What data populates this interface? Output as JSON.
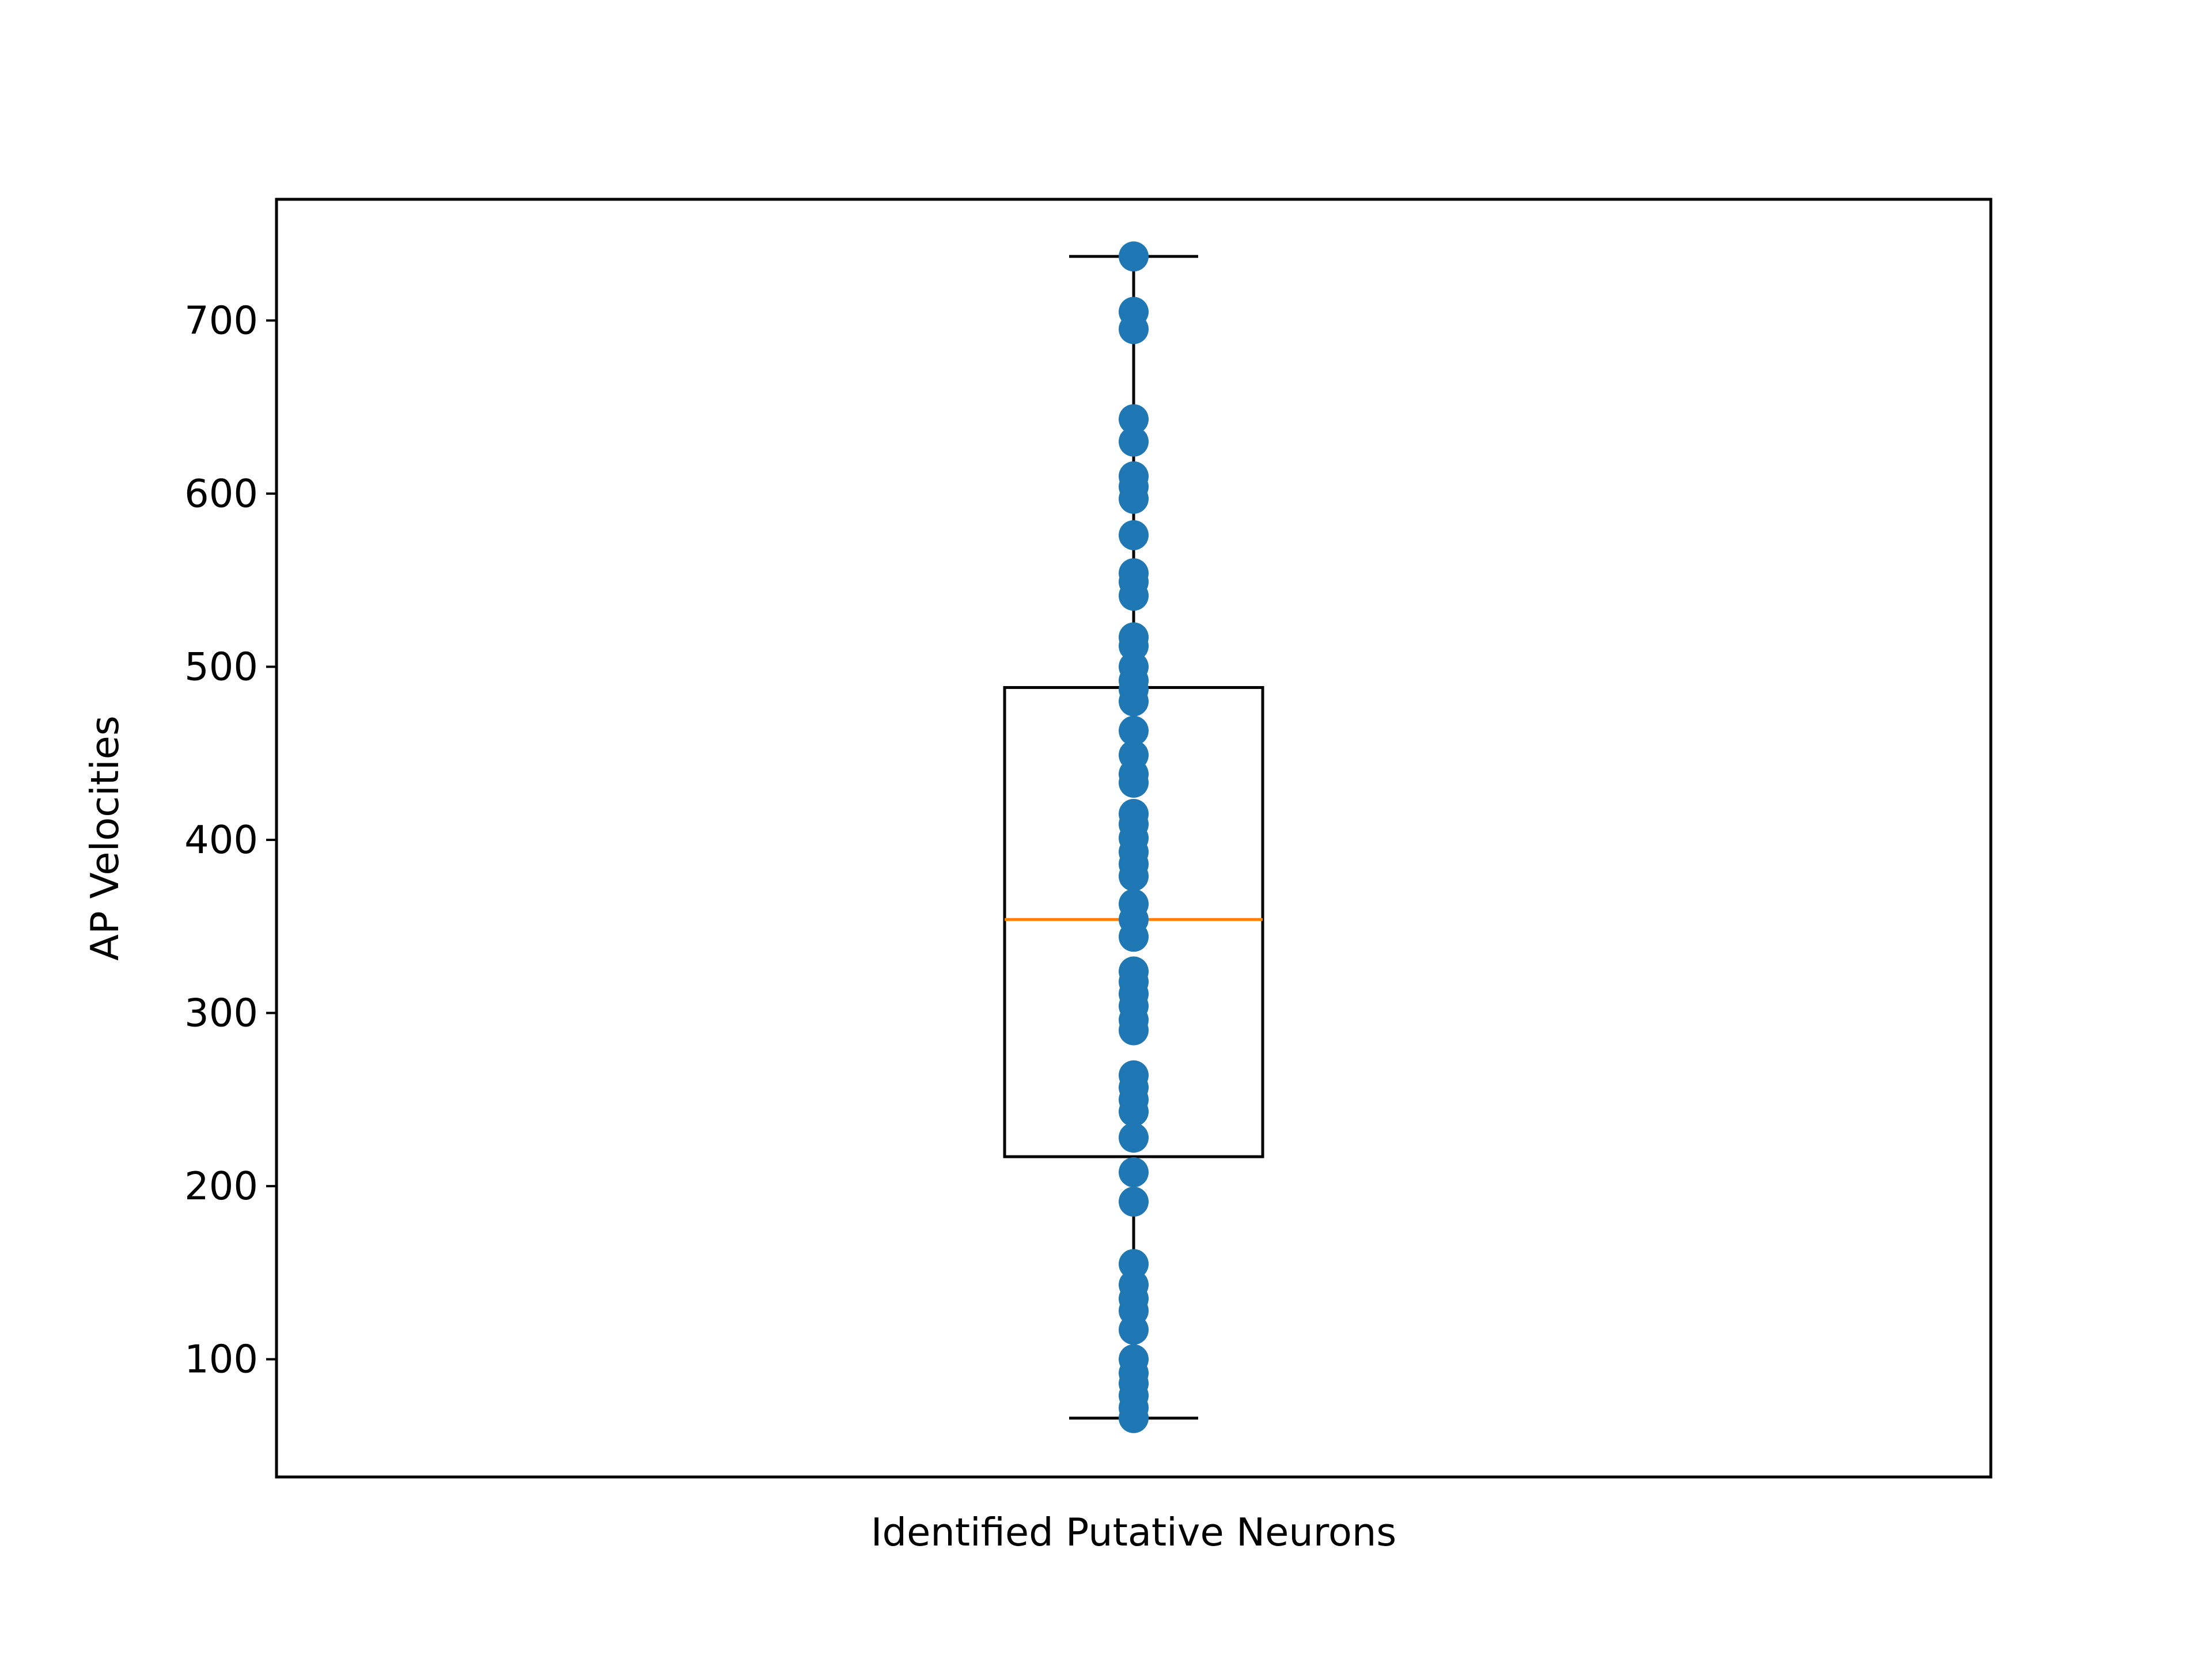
{
  "chart_data": {
    "type": "box",
    "title": "",
    "xlabel": "Identified Putative Neurons",
    "ylabel": "AP Velocities",
    "ylim": [
      32,
      770
    ],
    "yticks": [
      100,
      200,
      300,
      400,
      500,
      600,
      700
    ],
    "yticklabels": [
      "100",
      "200",
      "300",
      "400",
      "500",
      "600",
      "700"
    ],
    "grid": false,
    "box": {
      "category": "Identified Putative Neurons",
      "whisker_low": 66,
      "q1": 217,
      "median": 354,
      "q3": 488,
      "whisker_high": 737
    },
    "points": [
      66,
      72,
      79,
      86,
      92,
      100,
      117,
      128,
      135,
      143,
      155,
      191,
      208,
      228,
      243,
      250,
      257,
      264,
      290,
      296,
      304,
      311,
      318,
      324,
      344,
      354,
      363,
      379,
      386,
      393,
      401,
      409,
      415,
      433,
      438,
      449,
      463,
      480,
      487,
      492,
      500,
      512,
      517,
      541,
      549,
      554,
      576,
      597,
      604,
      610,
      630,
      643,
      695,
      705,
      737
    ],
    "colors": {
      "points": "#1f77b4",
      "median": "#ff7f0e",
      "box": "#000000"
    }
  }
}
